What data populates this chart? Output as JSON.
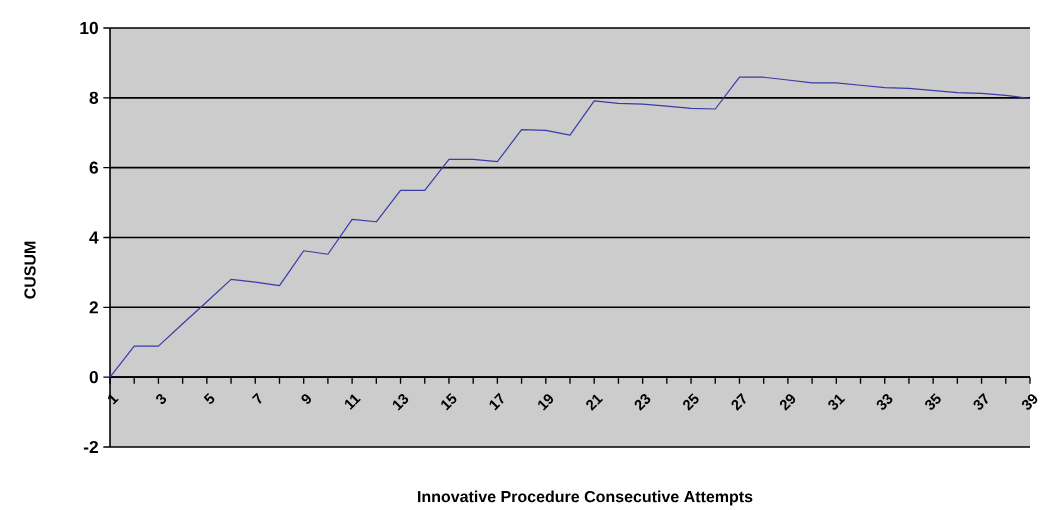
{
  "chart_data": {
    "type": "line",
    "xlabel": "Innovative Procedure Consecutive Attempts",
    "ylabel": "CUSUM",
    "categories": [
      "1",
      null,
      "3",
      null,
      "5",
      null,
      "7",
      null,
      "9",
      null,
      "11",
      null,
      "13",
      null,
      "15",
      null,
      "17",
      null,
      "19",
      null,
      "21",
      null,
      "23",
      null,
      "25",
      null,
      "27",
      null,
      "29",
      null,
      "31",
      null,
      "33",
      null,
      "35",
      null,
      "37",
      null,
      "39"
    ],
    "values": [
      0,
      0.89,
      0.89,
      1.53,
      2.16,
      2.8,
      2.72,
      2.62,
      3.62,
      3.52,
      4.52,
      4.45,
      5.35,
      5.35,
      6.24,
      6.24,
      6.17,
      7.09,
      7.07,
      6.93,
      7.91,
      7.84,
      7.82,
      7.76,
      7.7,
      7.68,
      8.59,
      8.59,
      8.51,
      8.43,
      8.43,
      8.36,
      8.29,
      8.27,
      8.21,
      8.15,
      8.13,
      8.07,
      7.98
    ],
    "color": "#3a3aa8",
    "line_style": "solid",
    "ylim": [
      -2,
      10
    ],
    "yticks": [
      -2,
      0,
      2,
      4,
      6,
      8,
      10
    ],
    "grid": "y"
  }
}
